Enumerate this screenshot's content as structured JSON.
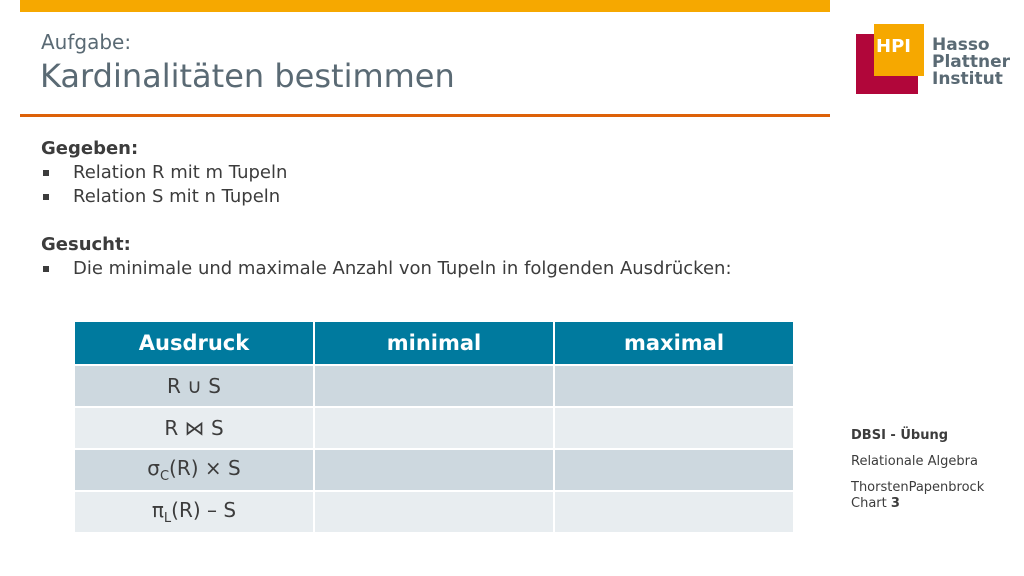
{
  "slide": {
    "subtitle": "Aufgabe:",
    "title": "Kardinalitäten bestimmen"
  },
  "logo": {
    "abbr": "HPI",
    "line1": "Hasso",
    "line2": "Plattner",
    "line3": "Institut",
    "colors": {
      "red": "#b1063a",
      "orange": "#f6a800",
      "gray": "#5a6a74"
    }
  },
  "body": {
    "given_heading": "Gegeben:",
    "given_items": [
      "Relation R mit m Tupeln",
      "Relation S mit n Tupeln"
    ],
    "wanted_heading": "Gesucht:",
    "wanted_items": [
      "Die minimale und maximale Anzahl von Tupeln in folgenden Ausdrücken:"
    ]
  },
  "table": {
    "headers": [
      "Ausdruck",
      "minimal",
      "maximal"
    ],
    "rows": [
      {
        "op_left": "R",
        "op": "∪",
        "op_right": "S"
      },
      {
        "op_left": "R",
        "op": "⋈",
        "op_right": "S"
      },
      {
        "sym": "σ",
        "sub": "C",
        "arg": "(R)",
        "op": "×",
        "op_right": "S"
      },
      {
        "sym": "π",
        "sub": "L",
        "arg": "(R)",
        "op": "–",
        "op_right": "S"
      }
    ]
  },
  "footer": {
    "course": "DBSI - Übung",
    "topic": "Relationale Algebra",
    "author": "ThorstenPapenbrock",
    "chart_label": "Chart",
    "chart_number": "3"
  },
  "colors": {
    "accent_bar": "#f6a800",
    "rule": "#dd6108",
    "header": "#007a9e"
  }
}
